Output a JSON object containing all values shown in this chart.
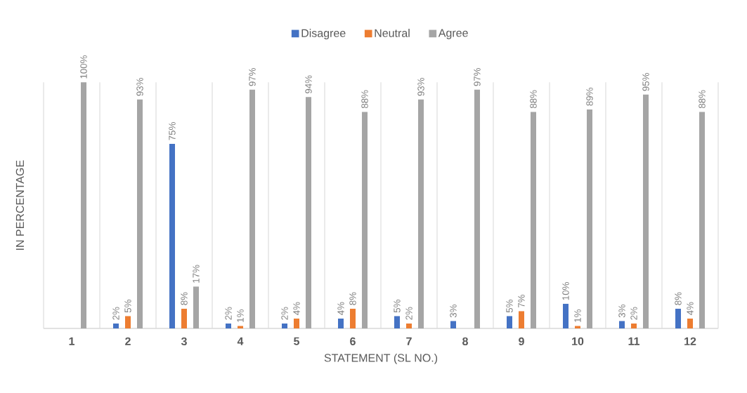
{
  "chart_data": {
    "type": "bar",
    "xlabel": "STATEMENT (SL NO.)",
    "ylabel": "IN PERCENTAGE",
    "categories": [
      "1",
      "2",
      "3",
      "4",
      "5",
      "6",
      "7",
      "8",
      "9",
      "10",
      "11",
      "12"
    ],
    "series": [
      {
        "name": "Disagree",
        "color": "#4472c4",
        "values": [
          null,
          2,
          75,
          2,
          2,
          4,
          5,
          3,
          5,
          10,
          3,
          8
        ],
        "value_labels": [
          null,
          "2%",
          "75%",
          "2%",
          "2%",
          "4%",
          "5%",
          "3%",
          "5%",
          "10%",
          "3%",
          "8%"
        ]
      },
      {
        "name": "Neutral",
        "color": "#ed7d31",
        "values": [
          null,
          5,
          8,
          1,
          4,
          8,
          2,
          null,
          7,
          1,
          2,
          4
        ],
        "value_labels": [
          null,
          "5%",
          "8%",
          "1%",
          "4%",
          "8%",
          "2%",
          null,
          "7%",
          "1%",
          "2%",
          "4%"
        ]
      },
      {
        "name": "Agree",
        "color": "#a5a5a5",
        "values": [
          100,
          93,
          17,
          97,
          94,
          88,
          93,
          97,
          88,
          89,
          95,
          88
        ],
        "value_labels": [
          "100%",
          "93%",
          "17%",
          "97%",
          "94%",
          "88%",
          "93%",
          "97%",
          "88%",
          "89%",
          "95%",
          "88%"
        ]
      }
    ],
    "grid": "x",
    "legend": "top"
  }
}
